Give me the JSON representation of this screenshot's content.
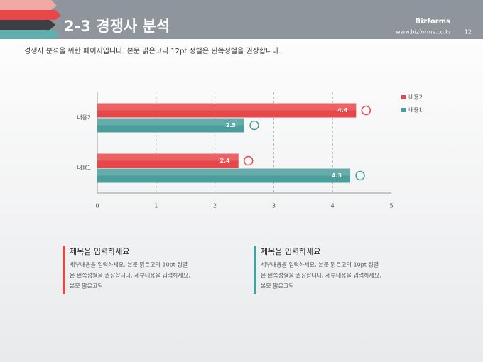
{
  "header": {
    "title": "2-3 경쟁사 분석",
    "brand": "Bizforms",
    "url": "www.bizforms.co.kr",
    "page": "12"
  },
  "description": "경쟁사 분석을 위한 페이지입니다. 본문 맑은고딕 12pt 정렬은 왼쪽정렬을 권장합니다.",
  "chart_data": {
    "type": "bar",
    "orientation": "horizontal",
    "categories": [
      "내용1",
      "내용2"
    ],
    "series": [
      {
        "name": "내용2",
        "color": "#e8474a",
        "values": [
          2.4,
          4.4
        ]
      },
      {
        "name": "내용1",
        "color": "#4a9e9c",
        "values": [
          4.3,
          2.5
        ]
      }
    ],
    "xlim": [
      0,
      5
    ],
    "xticks": [
      0,
      1,
      2,
      3,
      4,
      5
    ],
    "grid": true,
    "legend": "right"
  },
  "boxes": [
    {
      "title": "제목을 입력하세요",
      "color": "#e8474a",
      "lines": [
        "세부내용을 입력하세요. 본문 맑은고딕 10pt 정렬",
        "은 왼쪽정렬을 권장합니다. 세부내용을 입력하세요.",
        "본문 맑은고딕"
      ]
    },
    {
      "title": "제목을 입력하세요",
      "color": "#4a9e9c",
      "lines": [
        "세부내용을 입력하세요. 본문 맑은고딕 10pt 정렬",
        "은 왼쪽정렬을 권장합니다. 세부내용을 입력하세요.",
        "본문 맑은고딕"
      ]
    }
  ]
}
